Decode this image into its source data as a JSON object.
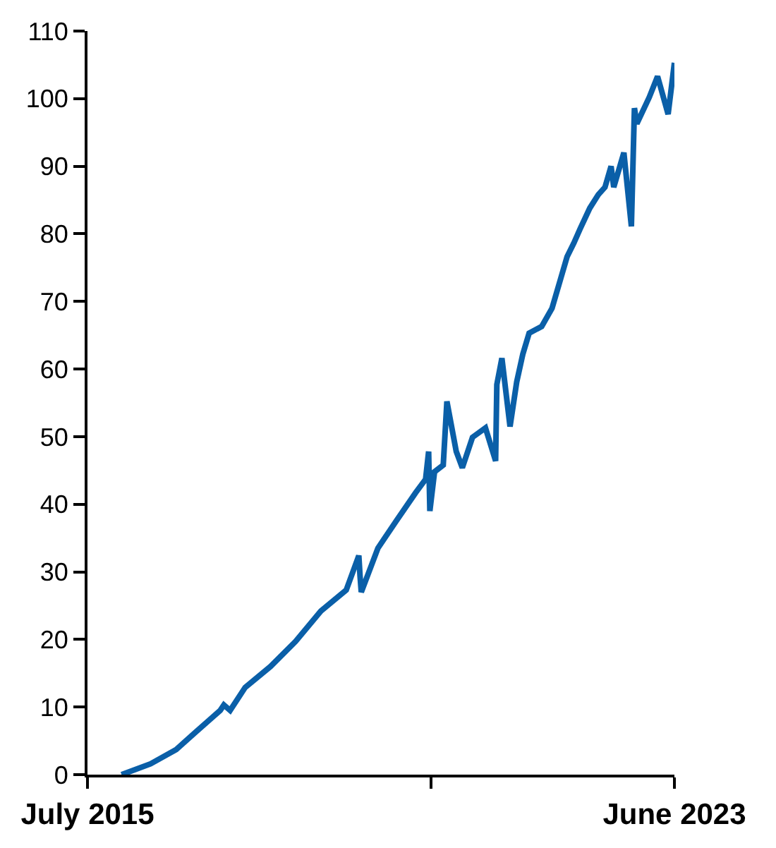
{
  "chart_data": {
    "type": "line",
    "marker": "none",
    "line_style": "solid",
    "x": [
      "2015-12-16",
      "2016-05-07",
      "2016-09-10",
      "2016-12-12",
      "2017-04-15",
      "2017-05-03",
      "2017-06-03",
      "2017-08-16",
      "2017-12-19",
      "2018-04-21",
      "2018-08-24",
      "2018-12-27",
      "2019-02-27",
      "2019-03-05",
      "2019-03-11",
      "2019-06-01",
      "2019-09-01",
      "2019-12-04",
      "2020-01-22",
      "2020-02-06",
      "2020-02-12",
      "2020-03-06",
      "2020-04-18",
      "2020-05-06",
      "2020-06-21",
      "2020-07-21",
      "2020-09-09",
      "2020-11-12",
      "2021-01-01",
      "2021-01-07",
      "2021-02-01",
      "2021-03-13",
      "2021-04-15",
      "2021-05-15",
      "2021-06-15",
      "2021-08-16",
      "2021-10-06",
      "2021-11-19",
      "2021-12-19",
      "2022-01-21",
      "2022-02-21",
      "2022-04-10",
      "2022-05-22",
      "2022-06-24",
      "2022-07-24",
      "2022-08-06",
      "2022-09-25",
      "2022-11-01",
      "2022-11-16",
      "2022-11-28",
      "2023-01-28",
      "2023-03-10",
      "2023-05-01",
      "2023-06-01"
    ],
    "series": [
      {
        "color": "#0a5fa8",
        "values": [
          0,
          1.6,
          3.7,
          6.2,
          9.5,
          10.3,
          9.5,
          12.9,
          16,
          19.7,
          24.2,
          27.3,
          32.4,
          29.4,
          27,
          33.5,
          37.6,
          41.7,
          43.7,
          47.8,
          39,
          44.8,
          45.8,
          55.2,
          47.8,
          45.4,
          49.9,
          51.3,
          46.4,
          57.7,
          61.6,
          51.5,
          58.1,
          62.2,
          65.3,
          66.3,
          69,
          73.5,
          76.6,
          78.6,
          80.7,
          83.8,
          85.8,
          86.9,
          90,
          86.9,
          92,
          81.1,
          98.6,
          96.3,
          100.2,
          103.3,
          97.7,
          105.3
        ]
      }
    ],
    "xlim": [
      "2015-07-01",
      "2023-06-01"
    ],
    "xticks": [
      {
        "value": "2015-07-01",
        "label": "July 2015"
      },
      {
        "value": "2020-02-18",
        "label": null
      },
      {
        "value": "2023-06-01",
        "label": "June 2023"
      }
    ],
    "ylim": [
      0,
      110
    ],
    "yticks": [
      0,
      10,
      20,
      30,
      40,
      50,
      60,
      70,
      80,
      90,
      100,
      110
    ]
  }
}
